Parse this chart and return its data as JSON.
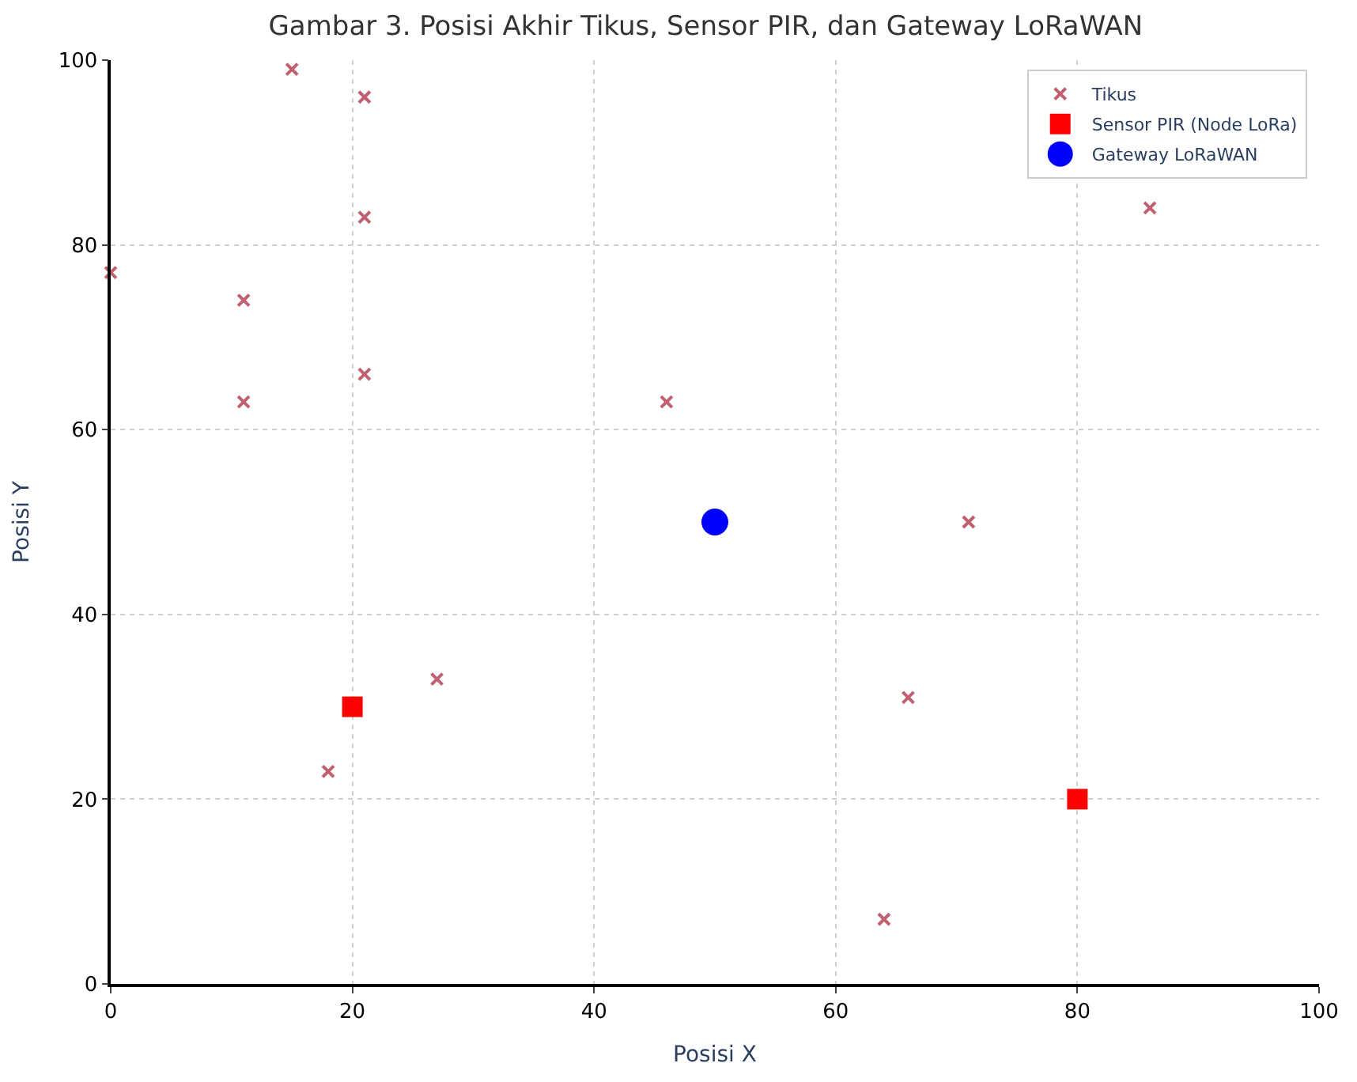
{
  "chart_data": {
    "type": "scatter",
    "title": "Gambar 3. Posisi Akhir Tikus, Sensor PIR, dan Gateway LoRaWAN",
    "xlabel": "Posisi X",
    "ylabel": "Posisi Y",
    "series": [
      {
        "name": "Tikus",
        "color": "#c06070",
        "marker": "cross",
        "x": [
          15,
          21,
          21,
          0,
          11,
          21,
          11,
          46,
          86,
          71,
          27,
          66,
          18,
          64
        ],
        "values": [
          99,
          96,
          83,
          77,
          74,
          66,
          63,
          63,
          84,
          50,
          33,
          31,
          23,
          7
        ]
      },
      {
        "name": "Sensor PIR (Node LoRa)",
        "color": "#ff0000",
        "marker": "square",
        "x": [
          20,
          80
        ],
        "values": [
          30,
          20
        ]
      },
      {
        "name": "Gateway LoRaWAN",
        "color": "#0000ff",
        "marker": "circle",
        "x": [
          50
        ],
        "values": [
          50
        ]
      }
    ],
    "xlim": [
      0,
      100
    ],
    "ylim": [
      0,
      100
    ],
    "xticks": [
      0,
      20,
      40,
      60,
      80,
      100
    ],
    "yticks": [
      0,
      20,
      40,
      60,
      80,
      100
    ],
    "grid": true,
    "legend": "top right"
  }
}
